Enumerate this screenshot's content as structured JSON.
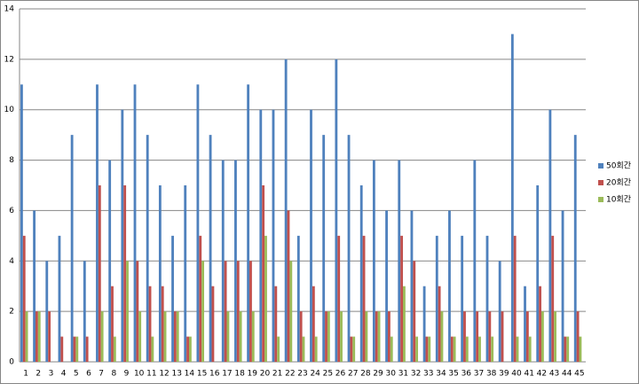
{
  "chart_data": {
    "type": "bar",
    "categories": [
      "1",
      "2",
      "3",
      "4",
      "5",
      "6",
      "7",
      "8",
      "9",
      "10",
      "11",
      "12",
      "13",
      "14",
      "15",
      "16",
      "17",
      "18",
      "19",
      "20",
      "21",
      "22",
      "23",
      "24",
      "25",
      "26",
      "27",
      "28",
      "29",
      "30",
      "31",
      "32",
      "33",
      "34",
      "35",
      "36",
      "37",
      "38",
      "39",
      "40",
      "41",
      "42",
      "43",
      "44",
      "45"
    ],
    "series": [
      {
        "name": "50회간",
        "color": "#4f81bd",
        "values": [
          11,
          6,
          4,
          5,
          9,
          4,
          11,
          8,
          10,
          11,
          9,
          7,
          5,
          7,
          11,
          9,
          8,
          8,
          11,
          10,
          10,
          12,
          5,
          10,
          9,
          12,
          9,
          7,
          8,
          6,
          8,
          6,
          3,
          5,
          6,
          5,
          8,
          5,
          4,
          13,
          3,
          7,
          10,
          6,
          9
        ]
      },
      {
        "name": "20회간",
        "color": "#c0504d",
        "values": [
          5,
          2,
          2,
          1,
          1,
          1,
          7,
          3,
          7,
          4,
          3,
          3,
          2,
          1,
          5,
          3,
          4,
          4,
          4,
          7,
          3,
          6,
          2,
          3,
          2,
          5,
          1,
          5,
          2,
          2,
          5,
          4,
          1,
          3,
          1,
          2,
          2,
          2,
          2,
          5,
          2,
          3,
          5,
          1,
          2
        ]
      },
      {
        "name": "10회간",
        "color": "#9bbb59",
        "values": [
          2,
          2,
          0,
          0,
          1,
          0,
          2,
          1,
          4,
          2,
          1,
          2,
          2,
          1,
          4,
          0,
          2,
          2,
          2,
          5,
          1,
          4,
          1,
          1,
          2,
          2,
          1,
          2,
          2,
          1,
          3,
          1,
          1,
          2,
          1,
          1,
          1,
          1,
          0,
          1,
          1,
          2,
          2,
          1,
          1
        ]
      }
    ],
    "ylim": [
      0,
      14
    ],
    "yticks": [
      0,
      2,
      4,
      6,
      8,
      10,
      12,
      14
    ],
    "grid": true,
    "legend": "right"
  }
}
